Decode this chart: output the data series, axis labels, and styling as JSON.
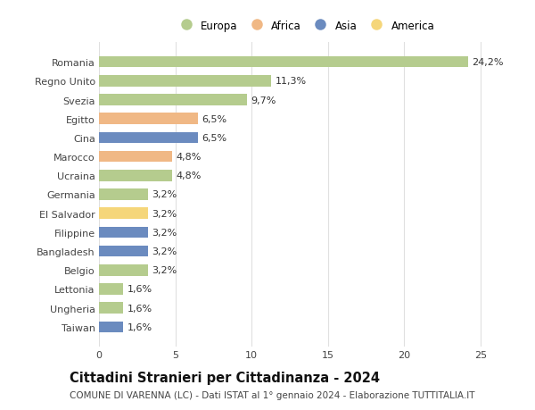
{
  "categories": [
    "Romania",
    "Regno Unito",
    "Svezia",
    "Egitto",
    "Cina",
    "Marocco",
    "Ucraina",
    "Germania",
    "El Salvador",
    "Filippine",
    "Bangladesh",
    "Belgio",
    "Lettonia",
    "Ungheria",
    "Taiwan"
  ],
  "values": [
    24.2,
    11.3,
    9.7,
    6.5,
    6.5,
    4.8,
    4.8,
    3.2,
    3.2,
    3.2,
    3.2,
    3.2,
    1.6,
    1.6,
    1.6
  ],
  "labels": [
    "24,2%",
    "11,3%",
    "9,7%",
    "6,5%",
    "6,5%",
    "4,8%",
    "4,8%",
    "3,2%",
    "3,2%",
    "3,2%",
    "3,2%",
    "3,2%",
    "1,6%",
    "1,6%",
    "1,6%"
  ],
  "continents": [
    "Europa",
    "Europa",
    "Europa",
    "Africa",
    "Asia",
    "Africa",
    "Europa",
    "Europa",
    "America",
    "Asia",
    "Asia",
    "Europa",
    "Europa",
    "Europa",
    "Asia"
  ],
  "colors": {
    "Europa": "#b5cc8e",
    "Africa": "#f0b885",
    "Asia": "#6b8bbf",
    "America": "#f5d67a"
  },
  "legend_order": [
    "Europa",
    "Africa",
    "Asia",
    "America"
  ],
  "title": "Cittadini Stranieri per Cittadinanza - 2024",
  "subtitle": "COMUNE DI VARENNA (LC) - Dati ISTAT al 1° gennaio 2024 - Elaborazione TUTTITALIA.IT",
  "xlim": [
    0,
    27
  ],
  "xticks": [
    0,
    5,
    10,
    15,
    20,
    25
  ],
  "background_color": "#ffffff",
  "grid_color": "#e0e0e0",
  "label_fontsize": 8,
  "bar_label_fontsize": 8,
  "title_fontsize": 10.5,
  "subtitle_fontsize": 7.5
}
